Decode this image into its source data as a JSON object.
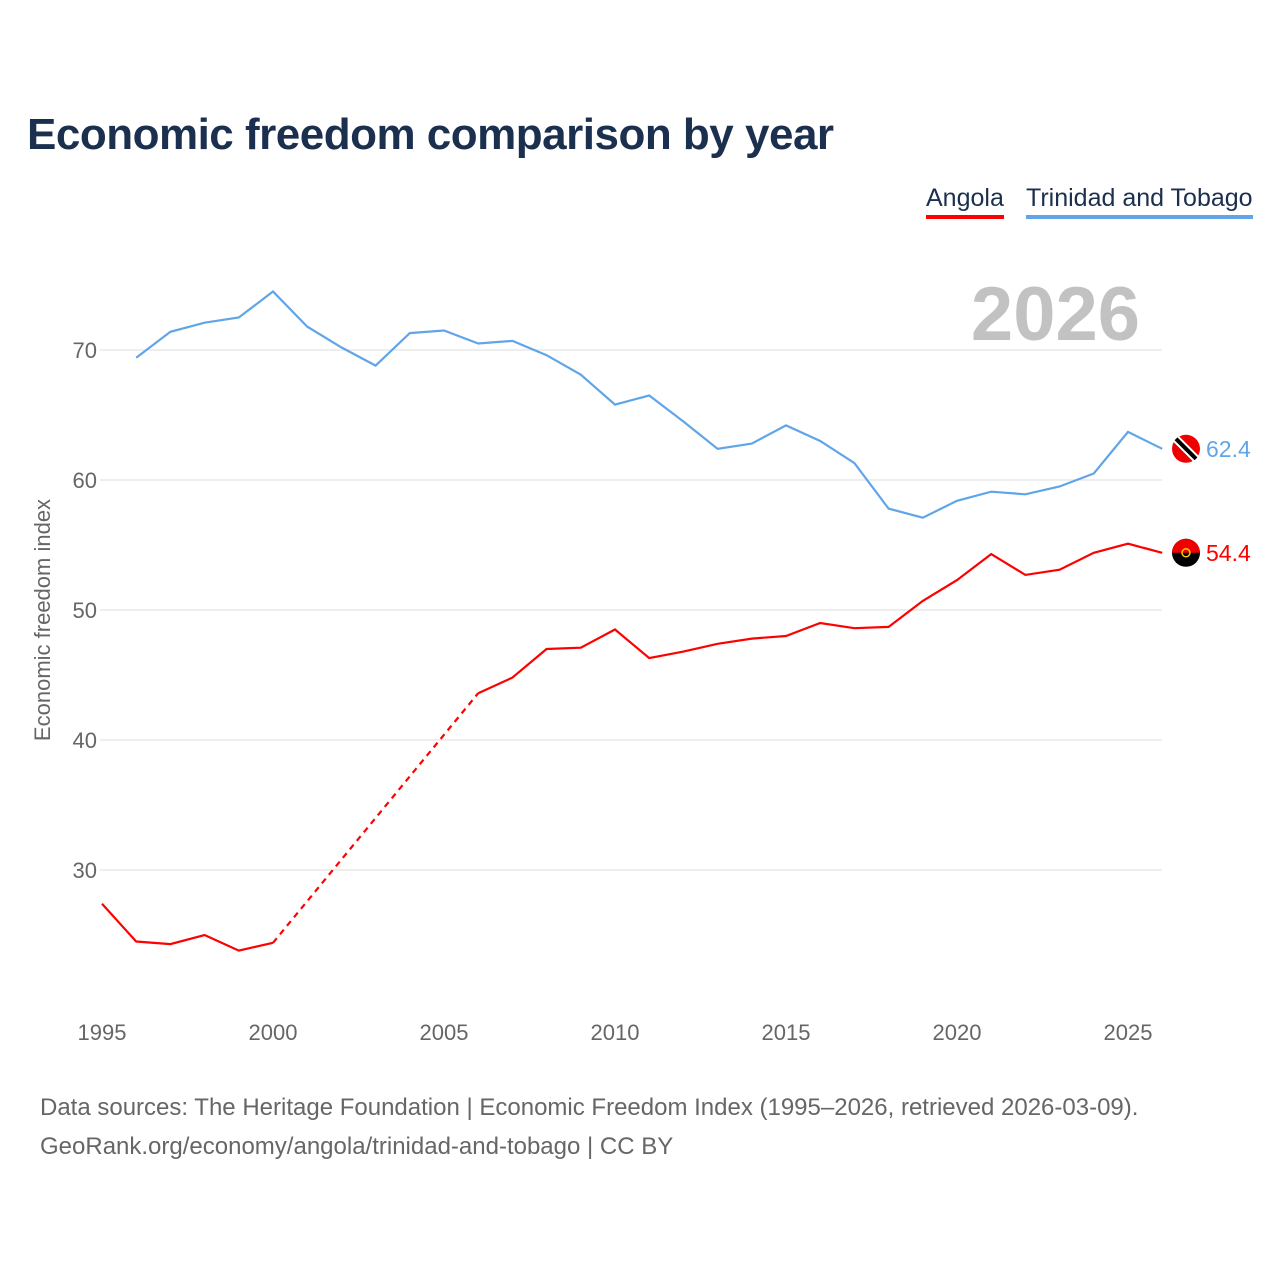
{
  "title": "Economic freedom comparison by year",
  "source_line1": "Data sources: The Heritage Foundation | Economic Freedom Index (1995–2026, retrieved 2026-03-09).",
  "source_line2": "GeoRank.org/economy/angola/trinidad-and-tobago | CC BY",
  "chart_data": {
    "type": "line",
    "title": "Economic freedom comparison by year",
    "ylabel": "Economic freedom index",
    "xlabel": "",
    "year_watermark": "2026",
    "xlim": [
      1995,
      2026
    ],
    "ylim": [
      20,
      76
    ],
    "xticks": [
      1995,
      2000,
      2005,
      2010,
      2015,
      2020,
      2025
    ],
    "yticks": [
      30,
      40,
      50,
      60,
      70
    ],
    "grid": true,
    "legend_position": "top-right",
    "x": [
      1995,
      1996,
      1997,
      1998,
      1999,
      2000,
      2001,
      2002,
      2003,
      2004,
      2005,
      2006,
      2007,
      2008,
      2009,
      2010,
      2011,
      2012,
      2013,
      2014,
      2015,
      2016,
      2017,
      2018,
      2019,
      2020,
      2021,
      2022,
      2023,
      2024,
      2025,
      2026
    ],
    "series": [
      {
        "name": "Angola",
        "color": "#ff0000",
        "end_label": "54.4",
        "values": [
          27.4,
          24.5,
          24.3,
          25.0,
          23.8,
          24.4,
          null,
          null,
          null,
          null,
          null,
          43.6,
          44.8,
          47.0,
          47.1,
          48.5,
          46.3,
          46.8,
          47.4,
          47.8,
          48.0,
          49.0,
          48.6,
          48.7,
          50.7,
          52.3,
          54.3,
          52.7,
          53.1,
          54.4,
          55.1,
          54.4
        ]
      },
      {
        "name": "Trinidad and Tobago",
        "color": "#60a5e8",
        "end_label": "62.4",
        "values": [
          null,
          69.4,
          71.4,
          72.1,
          72.5,
          74.5,
          71.8,
          70.2,
          68.8,
          71.3,
          71.5,
          70.5,
          70.7,
          69.6,
          68.1,
          65.8,
          66.5,
          64.5,
          62.4,
          62.8,
          64.2,
          63.0,
          61.3,
          57.8,
          57.1,
          58.4,
          59.1,
          58.9,
          59.5,
          60.5,
          63.7,
          62.4
        ]
      }
    ]
  }
}
